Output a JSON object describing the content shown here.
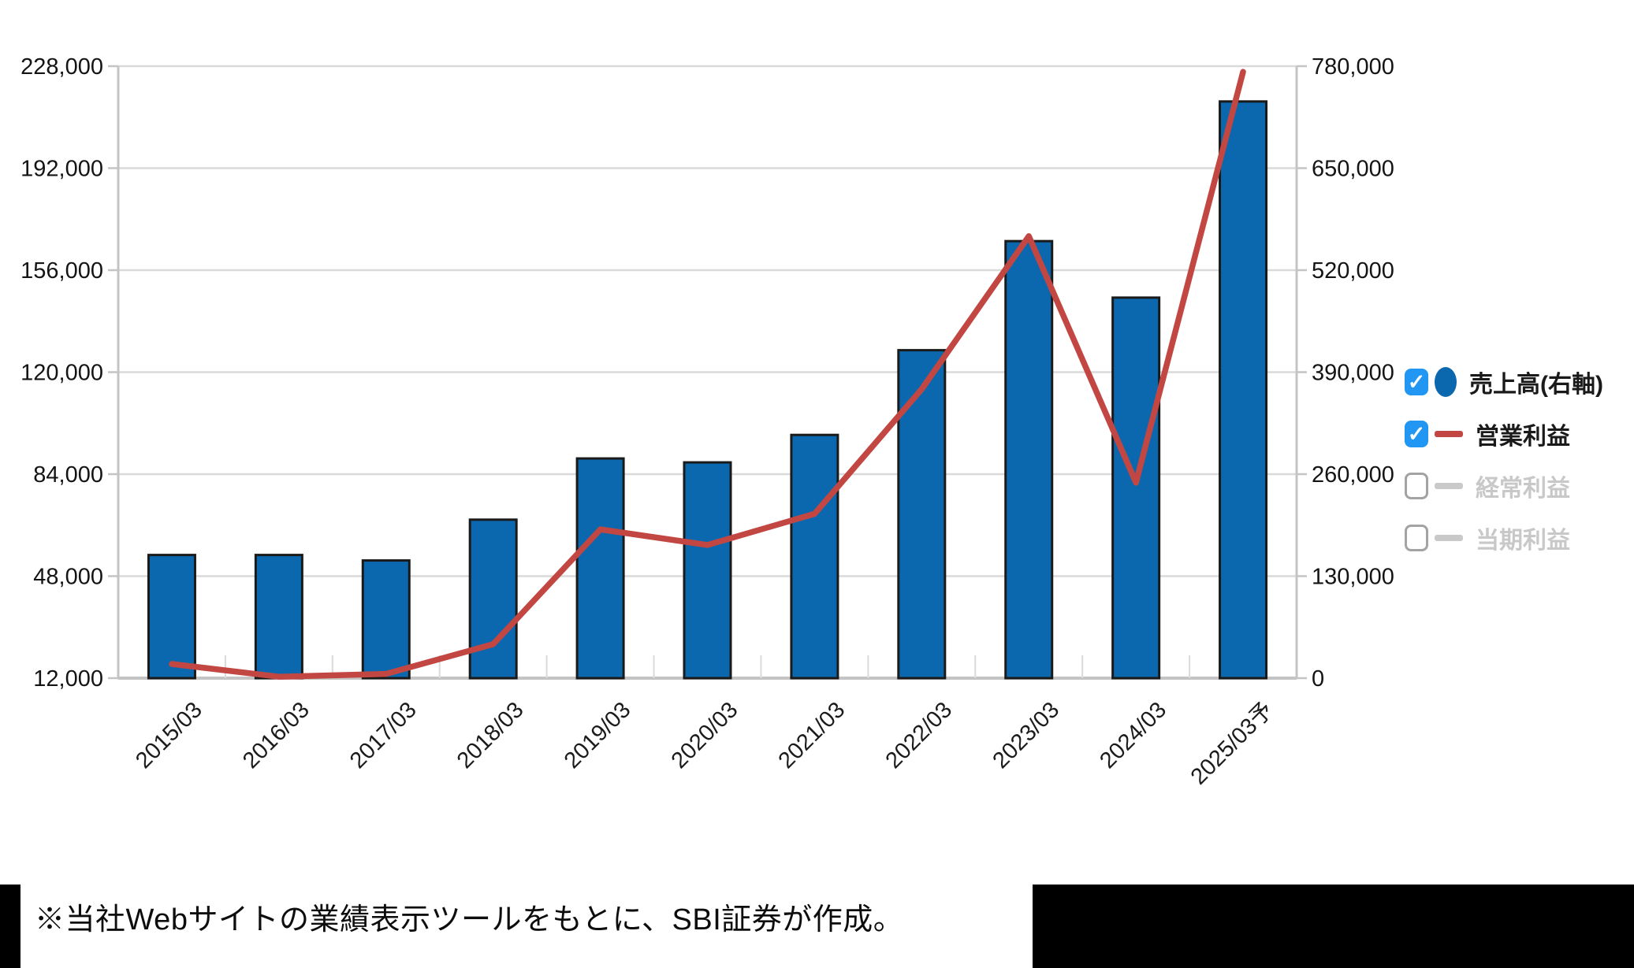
{
  "chart_data": {
    "type": "bar",
    "subtype": "combo-bar-line-dual-axis",
    "categories": [
      "2015/03",
      "2016/03",
      "2017/03",
      "2018/03",
      "2019/03",
      "2020/03",
      "2021/03",
      "2022/03",
      "2023/03",
      "2024/03",
      "2025/03予"
    ],
    "series": [
      {
        "name": "売上高(右軸)",
        "type": "bar",
        "axis": "right",
        "color": "#0b68af",
        "values": [
          157000,
          157000,
          150000,
          202000,
          280000,
          275000,
          310000,
          418000,
          557000,
          485000,
          735000
        ]
      },
      {
        "name": "営業利益",
        "type": "line",
        "axis": "left",
        "color": "#c24743",
        "values": [
          17000,
          12500,
          13500,
          24000,
          64500,
          59000,
          70000,
          114000,
          168000,
          81000,
          226000
        ]
      }
    ],
    "left_axis": {
      "min": 12000,
      "max": 228000,
      "ticks": [
        "228,000",
        "192,000",
        "156,000",
        "120,000",
        "84,000",
        "48,000",
        "12,000"
      ]
    },
    "right_axis": {
      "min": 0,
      "max": 780000,
      "ticks": [
        "780,000",
        "650,000",
        "520,000",
        "390,000",
        "260,000",
        "130,000",
        "0"
      ]
    },
    "grid": true,
    "legend_position": "right-middle"
  },
  "legend": {
    "items": [
      {
        "label": "売上高(右軸)",
        "checked": true,
        "enabled": true,
        "swatch": "circle",
        "color": "#0b68af"
      },
      {
        "label": "営業利益",
        "checked": true,
        "enabled": true,
        "swatch": "line",
        "color": "#c24743"
      },
      {
        "label": "経常利益",
        "checked": false,
        "enabled": false,
        "swatch": "line",
        "color": "#c9c9c9"
      },
      {
        "label": "当期利益",
        "checked": false,
        "enabled": false,
        "swatch": "line",
        "color": "#c9c9c9"
      }
    ],
    "check_glyph": "✓",
    "checkbox_color": "#2196f3"
  },
  "footer": {
    "note": "※当社Webサイトの業績表示ツールをもとに、SBI証券が作成。"
  },
  "colors": {
    "bar_fill": "#0b68af",
    "bar_border": "#1a1a1a",
    "line": "#c24743",
    "gridline": "#dadada",
    "axis": "#c4c4c4",
    "text": "#141414"
  }
}
